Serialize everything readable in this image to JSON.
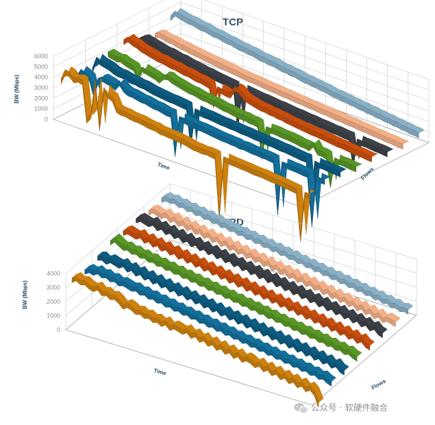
{
  "watermark": {
    "text": "公众号 · 软硬件融合",
    "icon": "wechat-icon"
  },
  "chart_data": [
    {
      "type": "line",
      "style": "3d-ribbon",
      "title": "TCP",
      "xlabel": "Time",
      "ylabel": "BW (Mbps)",
      "zlabel": "Flows",
      "ylim": [
        0,
        6000
      ],
      "yticks": [
        "0",
        "1000",
        "2000",
        "3000",
        "4000",
        "5000",
        "6000"
      ],
      "grid": true,
      "series": [
        {
          "color": "#b8730c",
          "values": [
            3500,
            4500,
            4400,
            4000,
            4200,
            4100,
            600,
            1200,
            4500,
            300,
            4100,
            3700,
            3500,
            2600,
            2500,
            2500,
            2400,
            2350,
            2350,
            2300,
            2200,
            2150,
            2150,
            2000,
            2000,
            1950,
            1950,
            1900,
            1850,
            1800,
            1700,
            1600,
            1600,
            1550,
            1600,
            1550,
            1500,
            -4200,
            1550,
            1500,
            1450,
            1450,
            1400,
            1400,
            1350,
            1300,
            1300,
            1300,
            1250,
            1200,
            1200,
            1150,
            1100,
            1050,
            1000,
            950,
            -3500,
            900,
            900
          ]
        },
        {
          "color": "#11638a",
          "values": [
            3000,
            3800,
            3600,
            3400,
            2000,
            3500,
            3800,
            3700,
            3600,
            3400,
            4000,
            3500,
            3300,
            3300,
            3200,
            3100,
            3100,
            3000,
            2900,
            2900,
            2800,
            2700,
            2700,
            -900,
            2600,
            2600,
            2500,
            2450,
            2400,
            2400,
            2350,
            2300,
            2250,
            2200,
            2150,
            2150,
            2100,
            2100,
            2000,
            2050,
            2000,
            1950,
            1950,
            1900,
            1900,
            1850,
            1800,
            -3000,
            1750,
            1750,
            1700,
            1700,
            1650,
            1600,
            1600,
            -3000,
            1550,
            1500,
            1500
          ]
        },
        {
          "color": "#0c5273",
          "values": [
            3000,
            4200,
            4000,
            3900,
            3800,
            3600,
            3500,
            3500,
            3400,
            3300,
            3300,
            3200,
            3200,
            3100,
            3000,
            2950,
            2900,
            2850,
            2800,
            2800,
            2750,
            2700,
            2650,
            -900,
            2600,
            2550,
            2500,
            2500,
            2450,
            2400,
            2350,
            2350,
            2300,
            2300,
            2250,
            2200,
            2200,
            2150,
            2100,
            2100,
            2050,
            2000,
            2000,
            1950,
            1900,
            1900,
            1850,
            1800,
            1750,
            1700,
            1700,
            -2800,
            1650,
            1600,
            1600,
            1550,
            1500,
            1500,
            1450
          ]
        },
        {
          "color": "#4f8622",
          "values": [
            3800,
            3700,
            3600,
            3700,
            3500,
            3400,
            3300,
            2500,
            3500,
            3400,
            3300,
            3200,
            3000,
            3500,
            3600,
            3400,
            3300,
            3200,
            3100,
            3000,
            3000,
            2900,
            2800,
            2800,
            2700,
            2700,
            2600,
            2500,
            2500,
            2400,
            2350,
            2300,
            2300,
            2200,
            2200,
            2100,
            -800,
            2000,
            2000,
            2000,
            1950,
            1900,
            1900,
            1850,
            1800,
            1700,
            1700,
            1600,
            2100,
            1500,
            1500,
            1400,
            -1200,
            1350,
            1300,
            1300,
            1250,
            1200,
            1200
          ]
        },
        {
          "color": "#b3460c",
          "values": [
            4200,
            4600,
            4400,
            4300,
            4100,
            4000,
            3900,
            3800,
            3700,
            3700,
            3600,
            3500,
            3500,
            3400,
            3300,
            3300,
            3200,
            3100,
            3100,
            3000,
            2900,
            1200,
            2900,
            2800,
            2700,
            2700,
            3500,
            3400,
            3000,
            2800,
            2700,
            2600,
            2500,
            2500,
            2400,
            2400,
            2300,
            2300,
            2200,
            2150,
            2100,
            2050,
            2000,
            1950,
            1900,
            1900,
            1850,
            1800,
            1750,
            1700,
            1650,
            1650,
            1600,
            1550,
            1500,
            1500,
            1450,
            1400,
            1400
          ]
        },
        {
          "color": "#363a3f",
          "values": [
            3600,
            3800,
            3700,
            3600,
            3500,
            3400,
            3300,
            3300,
            3200,
            3100,
            3100,
            3000,
            2900,
            2850,
            2800,
            2700,
            2700,
            2600,
            2550,
            2500,
            2450,
            2400,
            2350,
            -1500,
            2300,
            2250,
            2200,
            2150,
            2100,
            2100,
            2050,
            2000,
            1950,
            1950,
            1900,
            1850,
            1800,
            1800,
            1750,
            1700,
            1700,
            1650,
            1600,
            1600,
            1550,
            1500,
            1500,
            1450,
            1400,
            1400,
            -1000,
            1350,
            1300,
            1300,
            1250,
            1200,
            1200,
            1150,
            1100
          ]
        },
        {
          "color": "#d99c78",
          "values": [
            3300,
            3500,
            3400,
            3300,
            3300,
            3200,
            3100,
            3100,
            3000,
            2950,
            2900,
            2850,
            2800,
            2750,
            2700,
            2650,
            2600,
            2550,
            2500,
            2450,
            2400,
            2350,
            2300,
            2300,
            2250,
            2200,
            2150,
            2100,
            2100,
            2050,
            2000,
            2000,
            1950,
            1900,
            1900,
            1850,
            1800,
            1800,
            1750,
            1700,
            1700,
            1650,
            1600,
            1600,
            1550,
            1500,
            1500,
            1450,
            1400,
            1400,
            1350,
            1300,
            1300,
            1250,
            1200,
            1200,
            1150,
            1100,
            1100
          ]
        },
        {
          "color": "#7a9db1",
          "values": [
            4200,
            4800,
            4700,
            4600,
            4500,
            4500,
            4400,
            4300,
            4300,
            4200,
            4100,
            4100,
            4000,
            3900,
            3900,
            3800,
            3700,
            3700,
            3600,
            3600,
            3500,
            3400,
            3400,
            3300,
            3300,
            3200,
            3100,
            3100,
            3000,
            3000,
            2900,
            2800,
            2800,
            2700,
            2700,
            2600,
            2600,
            2500,
            2400,
            2400,
            2300,
            2300,
            2200,
            2200,
            2100,
            2100,
            2000,
            2000,
            1900,
            1900,
            1800,
            1800,
            1700,
            1700,
            1600,
            1600,
            1500,
            1500,
            1400
          ]
        }
      ]
    },
    {
      "type": "line",
      "style": "3d-ribbon",
      "title": "SRD",
      "xlabel": "Time",
      "ylabel": "BW (Mbps)",
      "zlabel": "Flows",
      "ylim": [
        0,
        4000
      ],
      "yticks": [
        "0",
        "1000",
        "2000",
        "3000",
        "4000"
      ],
      "grid": true,
      "series": [
        {
          "color": "#b8730c",
          "values": [
            3300,
            3500,
            3300,
            3400,
            3200,
            3100,
            3300,
            3000,
            3100,
            2900,
            3000,
            2800,
            2500,
            2700,
            2600,
            2400,
            2500,
            2300,
            2400,
            2200,
            2300,
            2100,
            2300,
            2000,
            2200,
            2100,
            2000,
            2200,
            1900,
            2100,
            1800,
            2000,
            1700,
            1900,
            1600,
            1800,
            1500,
            1700,
            1400,
            1600,
            1300,
            1500,
            1400,
            1200,
            1400,
            1100,
            1300,
            1000,
            1200,
            900,
            1100,
            800,
            1000,
            700,
            900,
            600,
            800,
            500,
            -200
          ]
        },
        {
          "color": "#11638a",
          "values": [
            3100,
            3300,
            3200,
            3400,
            3200,
            3300,
            3100,
            3200,
            3000,
            3100,
            3000,
            2900,
            3000,
            2800,
            2900,
            2700,
            2800,
            2600,
            2700,
            2500,
            2600,
            2400,
            2500,
            2300,
            2400,
            2200,
            2300,
            2100,
            2200,
            2000,
            2100,
            1900,
            2000,
            1800,
            1900,
            1700,
            1800,
            1600,
            1700,
            1500,
            1600,
            1400,
            1500,
            1300,
            1400,
            1200,
            1300,
            1100,
            1200,
            1000,
            1100,
            900,
            1000,
            800,
            900,
            700,
            800,
            600,
            500
          ]
        },
        {
          "color": "#0c5273",
          "values": [
            3300,
            3400,
            3200,
            3400,
            3300,
            3200,
            3400,
            3100,
            3300,
            3000,
            3200,
            2900,
            3100,
            2800,
            3000,
            2700,
            2900,
            2600,
            2800,
            2500,
            2700,
            2400,
            2600,
            2300,
            2500,
            2200,
            2400,
            2100,
            2300,
            2000,
            2200,
            1900,
            2100,
            1800,
            2000,
            1700,
            1900,
            1600,
            1800,
            1500,
            1700,
            1400,
            1600,
            1300,
            1500,
            1200,
            1400,
            1100,
            1300,
            1000,
            1200,
            900,
            1100,
            800,
            1000,
            700,
            900,
            600,
            500
          ]
        },
        {
          "color": "#4f8622",
          "values": [
            3600,
            3900,
            3700,
            3500,
            3600,
            3400,
            3500,
            3300,
            3400,
            3200,
            3300,
            3100,
            3200,
            3000,
            3100,
            2900,
            3000,
            2800,
            2900,
            2700,
            2800,
            2600,
            2700,
            2500,
            2600,
            2400,
            2500,
            2300,
            2400,
            2200,
            2300,
            2100,
            2200,
            2000,
            2100,
            1900,
            2000,
            1800,
            1900,
            1700,
            1800,
            1600,
            1700,
            1500,
            1600,
            1400,
            1500,
            1300,
            1400,
            1200,
            1300,
            1100,
            1200,
            1000,
            1100,
            900,
            1000,
            800,
            700
          ]
        },
        {
          "color": "#b3460c",
          "values": [
            3500,
            3700,
            3600,
            3500,
            3700,
            3400,
            3600,
            3300,
            3500,
            3200,
            3400,
            3100,
            3300,
            3000,
            3200,
            2900,
            3100,
            2800,
            3000,
            2700,
            2900,
            2600,
            2800,
            2500,
            2700,
            2400,
            2600,
            2300,
            2500,
            2200,
            2400,
            2100,
            2300,
            2000,
            2200,
            1900,
            2100,
            1800,
            2000,
            1700,
            1900,
            1600,
            1800,
            1500,
            1700,
            1400,
            1600,
            1300,
            1500,
            1200,
            1400,
            1100,
            1300,
            1000,
            1200,
            900,
            1100,
            800,
            700
          ]
        },
        {
          "color": "#363a3f",
          "values": [
            3600,
            3800,
            3700,
            3600,
            3800,
            3500,
            3700,
            3400,
            3600,
            3300,
            3500,
            3200,
            3400,
            3100,
            3300,
            3000,
            3200,
            2900,
            3100,
            2800,
            3000,
            2700,
            2900,
            2600,
            2800,
            2500,
            2700,
            2400,
            2600,
            2300,
            2500,
            2200,
            2400,
            2100,
            2300,
            2000,
            2200,
            1900,
            2100,
            1800,
            2000,
            1700,
            1900,
            1600,
            1800,
            1500,
            1700,
            1400,
            1600,
            1300,
            1500,
            1200,
            1400,
            1100,
            1300,
            1000,
            1200,
            900,
            800
          ]
        },
        {
          "color": "#d99c78",
          "values": [
            3400,
            3600,
            3500,
            3400,
            3600,
            3300,
            3500,
            3200,
            3400,
            3100,
            3300,
            3000,
            3200,
            2900,
            3100,
            2800,
            3000,
            2700,
            2900,
            2600,
            2800,
            2500,
            2700,
            2400,
            2600,
            2300,
            2500,
            2200,
            2400,
            2100,
            2300,
            2000,
            2200,
            1900,
            2100,
            1800,
            2000,
            1700,
            1900,
            1600,
            1800,
            1500,
            1700,
            1400,
            1600,
            1300,
            1500,
            1200,
            1400,
            1100,
            1300,
            1000,
            1200,
            900,
            1100,
            800,
            1000,
            900,
            800
          ]
        },
        {
          "color": "#7a9db1",
          "values": [
            3500,
            3700,
            3600,
            3700,
            3500,
            3600,
            3400,
            3500,
            3300,
            3400,
            3200,
            3300,
            3100,
            3200,
            3000,
            3100,
            2900,
            3000,
            2800,
            2900,
            2700,
            2800,
            2600,
            2700,
            2500,
            2600,
            2400,
            2500,
            2300,
            2400,
            2200,
            2300,
            2100,
            2200,
            2000,
            2100,
            1900,
            2000,
            1800,
            1900,
            1700,
            1800,
            1600,
            1700,
            1500,
            1600,
            1400,
            1500,
            1300,
            1400,
            1200,
            1300,
            1100,
            1200,
            1000,
            1100,
            900,
            1000,
            900
          ]
        }
      ]
    }
  ]
}
